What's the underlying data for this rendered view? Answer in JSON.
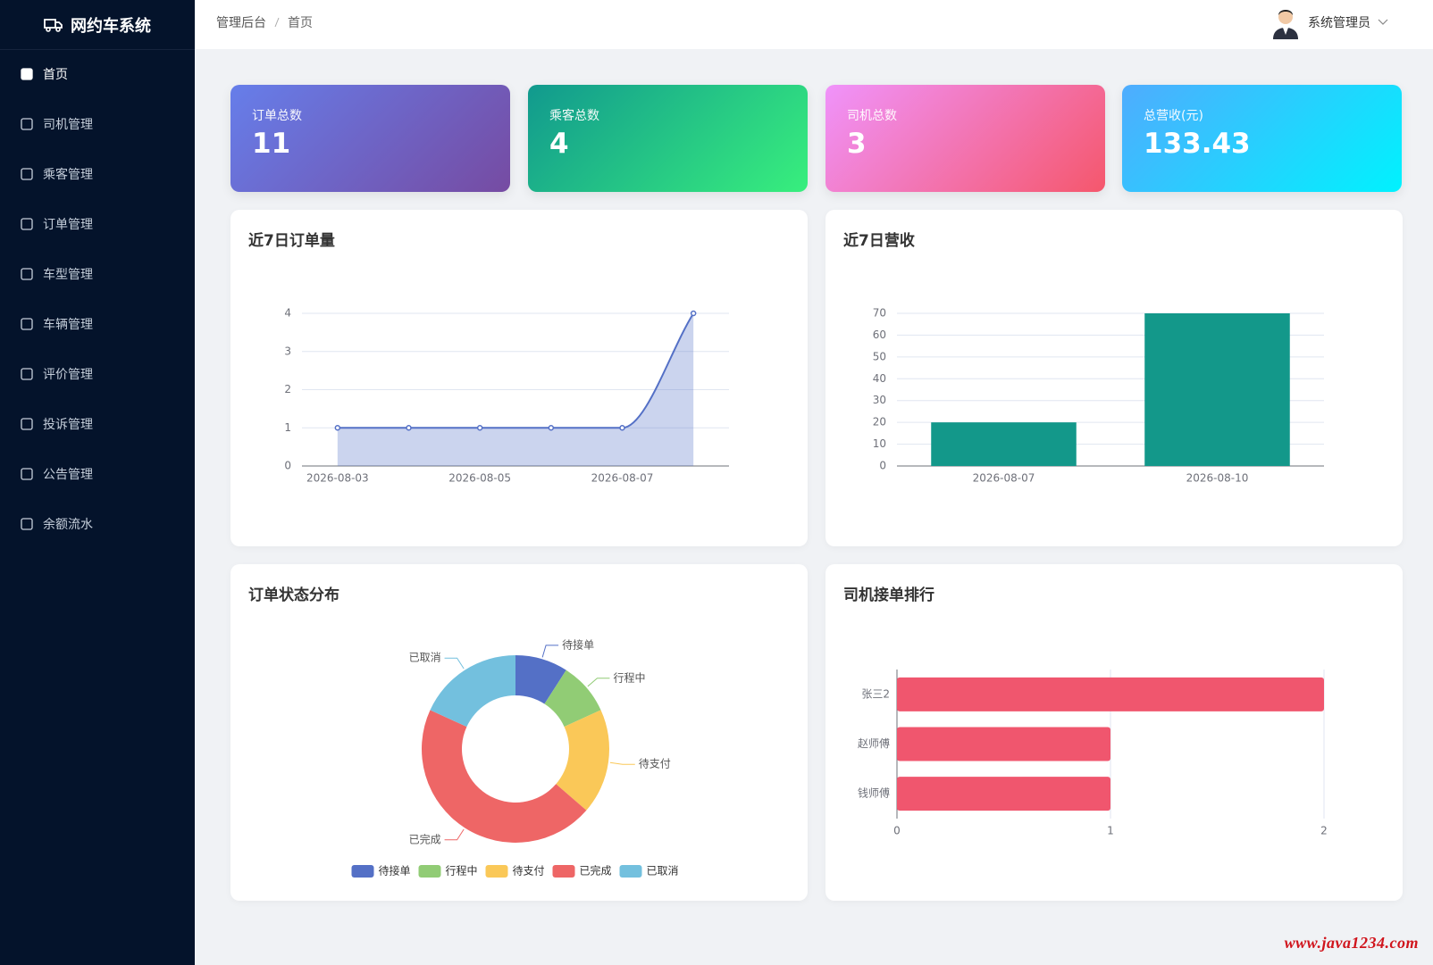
{
  "sidebar": {
    "title": "网约车系统",
    "menu": [
      "首页",
      "司机管理",
      "乘客管理",
      "订单管理",
      "车型管理",
      "车辆管理",
      "评价管理",
      "投诉管理",
      "公告管理",
      "余额流水"
    ]
  },
  "header": {
    "breadcrumb": [
      "管理后台",
      "首页"
    ],
    "user": "系统管理员"
  },
  "stats": [
    {
      "label": "订单总数",
      "value": 11
    },
    {
      "label": "乘客总数",
      "value": 4
    },
    {
      "label": "司机总数",
      "value": 3
    },
    {
      "label": "总营收(元)",
      "value": 133.43
    }
  ],
  "chart_data": [
    {
      "type": "line",
      "title": "近7日订单量",
      "categories": [
        "2026-08-03",
        null,
        "2026-08-05",
        null,
        "2026-08-07",
        null
      ],
      "values": [
        1,
        1,
        1,
        1,
        1,
        4
      ],
      "color": "#5470c6",
      "ylim": [
        0,
        4
      ],
      "yticks": [
        0,
        1,
        2,
        3,
        4
      ],
      "grid": true
    },
    {
      "type": "bar",
      "title": "近7日营收",
      "categories": [
        "2026-08-07",
        "2026-08-10"
      ],
      "values": [
        20,
        70
      ],
      "color": "#13988a",
      "ylim": [
        0,
        70
      ],
      "yticks": [
        0,
        10,
        20,
        30,
        40,
        50,
        60,
        70
      ],
      "grid": true
    },
    {
      "type": "pie",
      "title": "订单状态分布",
      "categories": [
        "待接单",
        "行程中",
        "待支付",
        "已完成",
        "已取消"
      ],
      "values": [
        1,
        1,
        2,
        5,
        2
      ],
      "colors": [
        "#5470c6",
        "#91cc75",
        "#fac858",
        "#ee6666",
        "#73c0de"
      ],
      "legend": "bottom"
    },
    {
      "type": "bar",
      "horizontal": true,
      "title": "司机接单排行",
      "categories": [
        "张三2",
        "赵师傅",
        "钱师傅"
      ],
      "values": [
        2,
        1,
        1
      ],
      "color": "#f0566e",
      "xlim": [
        0,
        2
      ],
      "xticks": [
        0,
        1,
        2
      ],
      "grid": true
    }
  ],
  "watermark": "www.java1234.com"
}
